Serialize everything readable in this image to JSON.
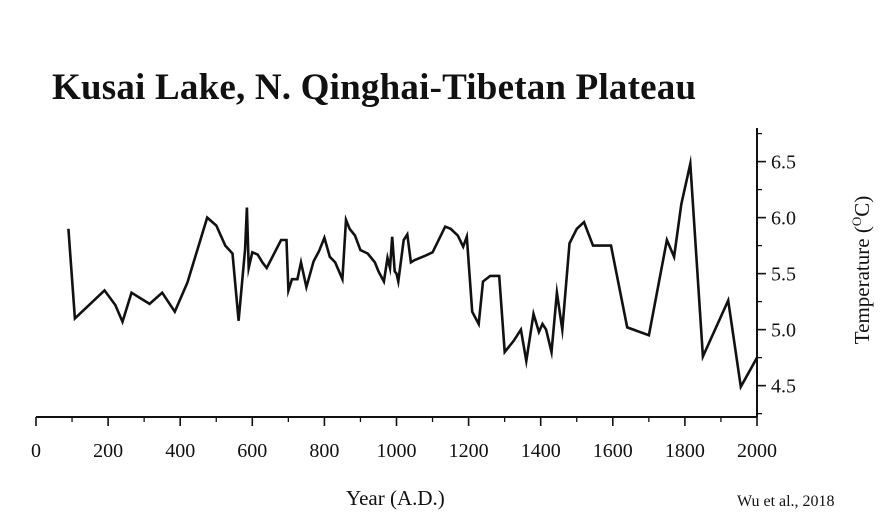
{
  "chart_data": {
    "type": "line",
    "title": "Kusai Lake, N. Qinghai-Tibetan Plateau",
    "xlabel": "Year (A.D.)",
    "ylabel_prefix": "Temperature (",
    "ylabel_degree": "O",
    "ylabel_suffix": "C)",
    "source": "Wu et al., 2018",
    "xlim": [
      0,
      2000
    ],
    "ylim": [
      4.22,
      6.8
    ],
    "x_ticks": [
      0,
      200,
      400,
      600,
      800,
      1000,
      1200,
      1400,
      1600,
      1800,
      2000
    ],
    "x_tick_labels": [
      "0",
      "200",
      "400",
      "600",
      "800",
      "1000",
      "1200",
      "1400",
      "1600",
      "1800",
      "2000"
    ],
    "y_ticks": [
      4.5,
      5.0,
      5.5,
      6.0,
      6.5
    ],
    "y_tick_labels": [
      "4.5",
      "5.0",
      "5.5",
      "6.0",
      "6.5"
    ],
    "y_axis_position": "right",
    "grid": false,
    "line_color": "#111111",
    "series": [
      {
        "x": [
          90,
          108,
          190,
          220,
          240,
          265,
          300,
          315,
          350,
          385,
          420,
          475,
          500,
          525,
          545,
          562,
          580,
          585,
          590,
          600,
          615,
          628,
          640,
          680,
          695,
          700,
          710,
          725,
          735,
          750,
          770,
          785,
          800,
          815,
          830,
          850,
          860,
          870,
          885,
          900,
          920,
          940,
          950,
          965,
          975,
          982,
          988,
          995,
          1000,
          1005,
          1020,
          1030,
          1040,
          1050,
          1080,
          1100,
          1135,
          1150,
          1170,
          1185,
          1195,
          1210,
          1228,
          1240,
          1260,
          1285,
          1300,
          1325,
          1345,
          1360,
          1380,
          1395,
          1405,
          1415,
          1430,
          1445,
          1460,
          1480,
          1500,
          1520,
          1545,
          1565,
          1595,
          1640,
          1700,
          1750,
          1770,
          1790,
          1815,
          1850,
          1920,
          1955,
          2000
        ],
        "y": [
          5.9,
          5.1,
          5.35,
          5.22,
          5.07,
          5.33,
          5.26,
          5.23,
          5.33,
          5.16,
          5.42,
          6.0,
          5.93,
          5.75,
          5.68,
          5.08,
          5.72,
          6.09,
          5.55,
          5.69,
          5.67,
          5.6,
          5.55,
          5.8,
          5.8,
          5.35,
          5.45,
          5.45,
          5.6,
          5.38,
          5.61,
          5.7,
          5.82,
          5.65,
          5.6,
          5.45,
          5.98,
          5.9,
          5.84,
          5.71,
          5.68,
          5.6,
          5.52,
          5.43,
          5.64,
          5.55,
          5.83,
          5.52,
          5.5,
          5.43,
          5.8,
          5.85,
          5.6,
          5.62,
          5.66,
          5.69,
          5.92,
          5.9,
          5.84,
          5.74,
          5.83,
          5.16,
          5.05,
          5.43,
          5.48,
          5.48,
          4.8,
          4.9,
          5.0,
          4.72,
          5.14,
          4.98,
          5.05,
          5.0,
          4.8,
          5.33,
          5.0,
          5.77,
          5.9,
          5.96,
          5.75,
          5.75,
          5.75,
          5.02,
          4.95,
          5.8,
          5.65,
          6.12,
          6.48,
          4.76,
          5.26,
          4.49,
          4.75
        ]
      }
    ]
  }
}
